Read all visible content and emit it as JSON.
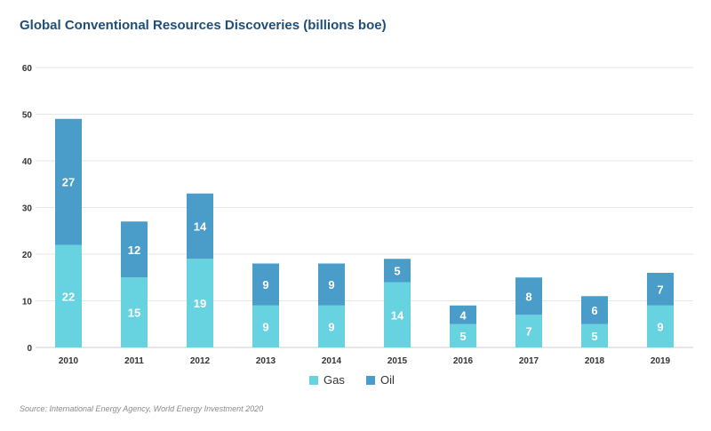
{
  "chart_data": {
    "type": "bar",
    "stacked": true,
    "title": "Global Conventional Resources Discoveries (billions boe)",
    "xlabel": "",
    "ylabel": "",
    "categories": [
      "2010",
      "2011",
      "2012",
      "2013",
      "2014",
      "2015",
      "2016",
      "2017",
      "2018",
      "2019"
    ],
    "ylim": [
      0,
      60
    ],
    "yticks": [
      0,
      10,
      20,
      30,
      40,
      50,
      60
    ],
    "grid": true,
    "legend": "bottom-center",
    "series": [
      {
        "name": "Gas",
        "color": "#67d2e0",
        "values": [
          22,
          15,
          19,
          9,
          9,
          14,
          5,
          7,
          5,
          9
        ]
      },
      {
        "name": "Oil",
        "color": "#4a9dc8",
        "values": [
          27,
          12,
          14,
          9,
          9,
          5,
          4,
          8,
          6,
          7
        ]
      }
    ],
    "source": "Source: International Energy Agency, World Energy Investment 2020"
  }
}
